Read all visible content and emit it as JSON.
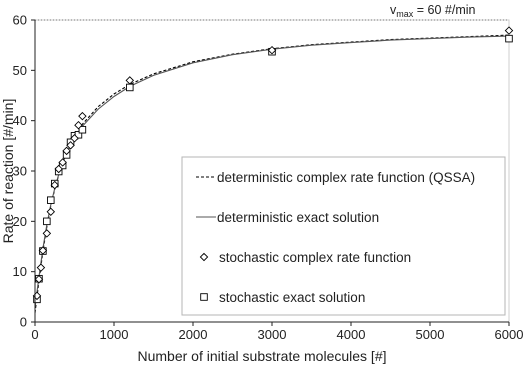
{
  "chart_data": {
    "type": "scatter",
    "title": "",
    "xlabel": "Number of initial substrate molecules [#]",
    "ylabel": "Rate of reaction [#/min]",
    "xlim": [
      0,
      6000
    ],
    "ylim": [
      0,
      60
    ],
    "x_ticks": [
      0,
      1000,
      2000,
      3000,
      4000,
      5000,
      6000
    ],
    "y_ticks": [
      0,
      10,
      20,
      30,
      40,
      50,
      60
    ],
    "grid": false,
    "legend_position": "lower-right",
    "annotation": {
      "text_prefix": "v",
      "text_sub": "max",
      "text_suffix": " = 60 #/min",
      "y": 60,
      "line_style": "dotted"
    },
    "series": [
      {
        "name": "deterministic complex rate function (QSSA)",
        "kind": "line",
        "style": "dashed",
        "color": "#000000",
        "x": [
          0,
          25,
          50,
          100,
          150,
          200,
          250,
          300,
          350,
          400,
          450,
          500,
          550,
          600,
          800,
          1000,
          1200,
          1500,
          2000,
          2500,
          3000,
          3500,
          4000,
          4500,
          5000,
          5500,
          6000
        ],
        "y": [
          1.8,
          5.0,
          8.2,
          14.0,
          19.0,
          23.1,
          26.4,
          29.2,
          31.6,
          33.6,
          35.3,
          36.8,
          38.1,
          39.3,
          42.8,
          45.3,
          47.2,
          49.3,
          51.7,
          53.2,
          54.3,
          55.1,
          55.6,
          56.1,
          56.4,
          56.7,
          57.0
        ]
      },
      {
        "name": "deterministic exact solution",
        "kind": "line",
        "style": "solid",
        "color": "#555555",
        "x": [
          0,
          25,
          50,
          100,
          150,
          200,
          250,
          300,
          350,
          400,
          450,
          500,
          550,
          600,
          800,
          1000,
          1200,
          1500,
          2000,
          2500,
          3000,
          3500,
          4000,
          4500,
          5000,
          5500,
          6000
        ],
        "y": [
          2.8,
          6.0,
          9.0,
          14.6,
          19.4,
          23.3,
          26.6,
          29.3,
          31.6,
          33.5,
          35.1,
          36.5,
          37.8,
          38.9,
          42.3,
          44.8,
          46.8,
          49.0,
          51.5,
          53.1,
          54.2,
          55.0,
          55.5,
          56.0,
          56.3,
          56.6,
          56.8
        ]
      },
      {
        "name": "stochastic complex rate function",
        "kind": "scatter",
        "marker": "diamond",
        "color": "#000000",
        "x": [
          25,
          50,
          75,
          100,
          150,
          200,
          250,
          300,
          350,
          400,
          450,
          500,
          550,
          600,
          1200,
          3000,
          6000
        ],
        "y": [
          5.2,
          8.5,
          10.8,
          14.2,
          17.6,
          21.9,
          27.2,
          30.4,
          31.7,
          34.0,
          35.1,
          36.5,
          39.1,
          40.9,
          48.0,
          54.0,
          57.9
        ]
      },
      {
        "name": "stochastic exact solution",
        "kind": "scatter",
        "marker": "square",
        "color": "#000000",
        "x": [
          25,
          50,
          100,
          150,
          200,
          250,
          300,
          350,
          400,
          450,
          500,
          550,
          600,
          1200,
          3000,
          6000
        ],
        "y": [
          4.5,
          8.6,
          14.1,
          20.0,
          24.2,
          27.5,
          29.9,
          31.1,
          33.2,
          35.7,
          37.0,
          37.2,
          38.2,
          46.6,
          53.7,
          56.3
        ]
      }
    ]
  }
}
